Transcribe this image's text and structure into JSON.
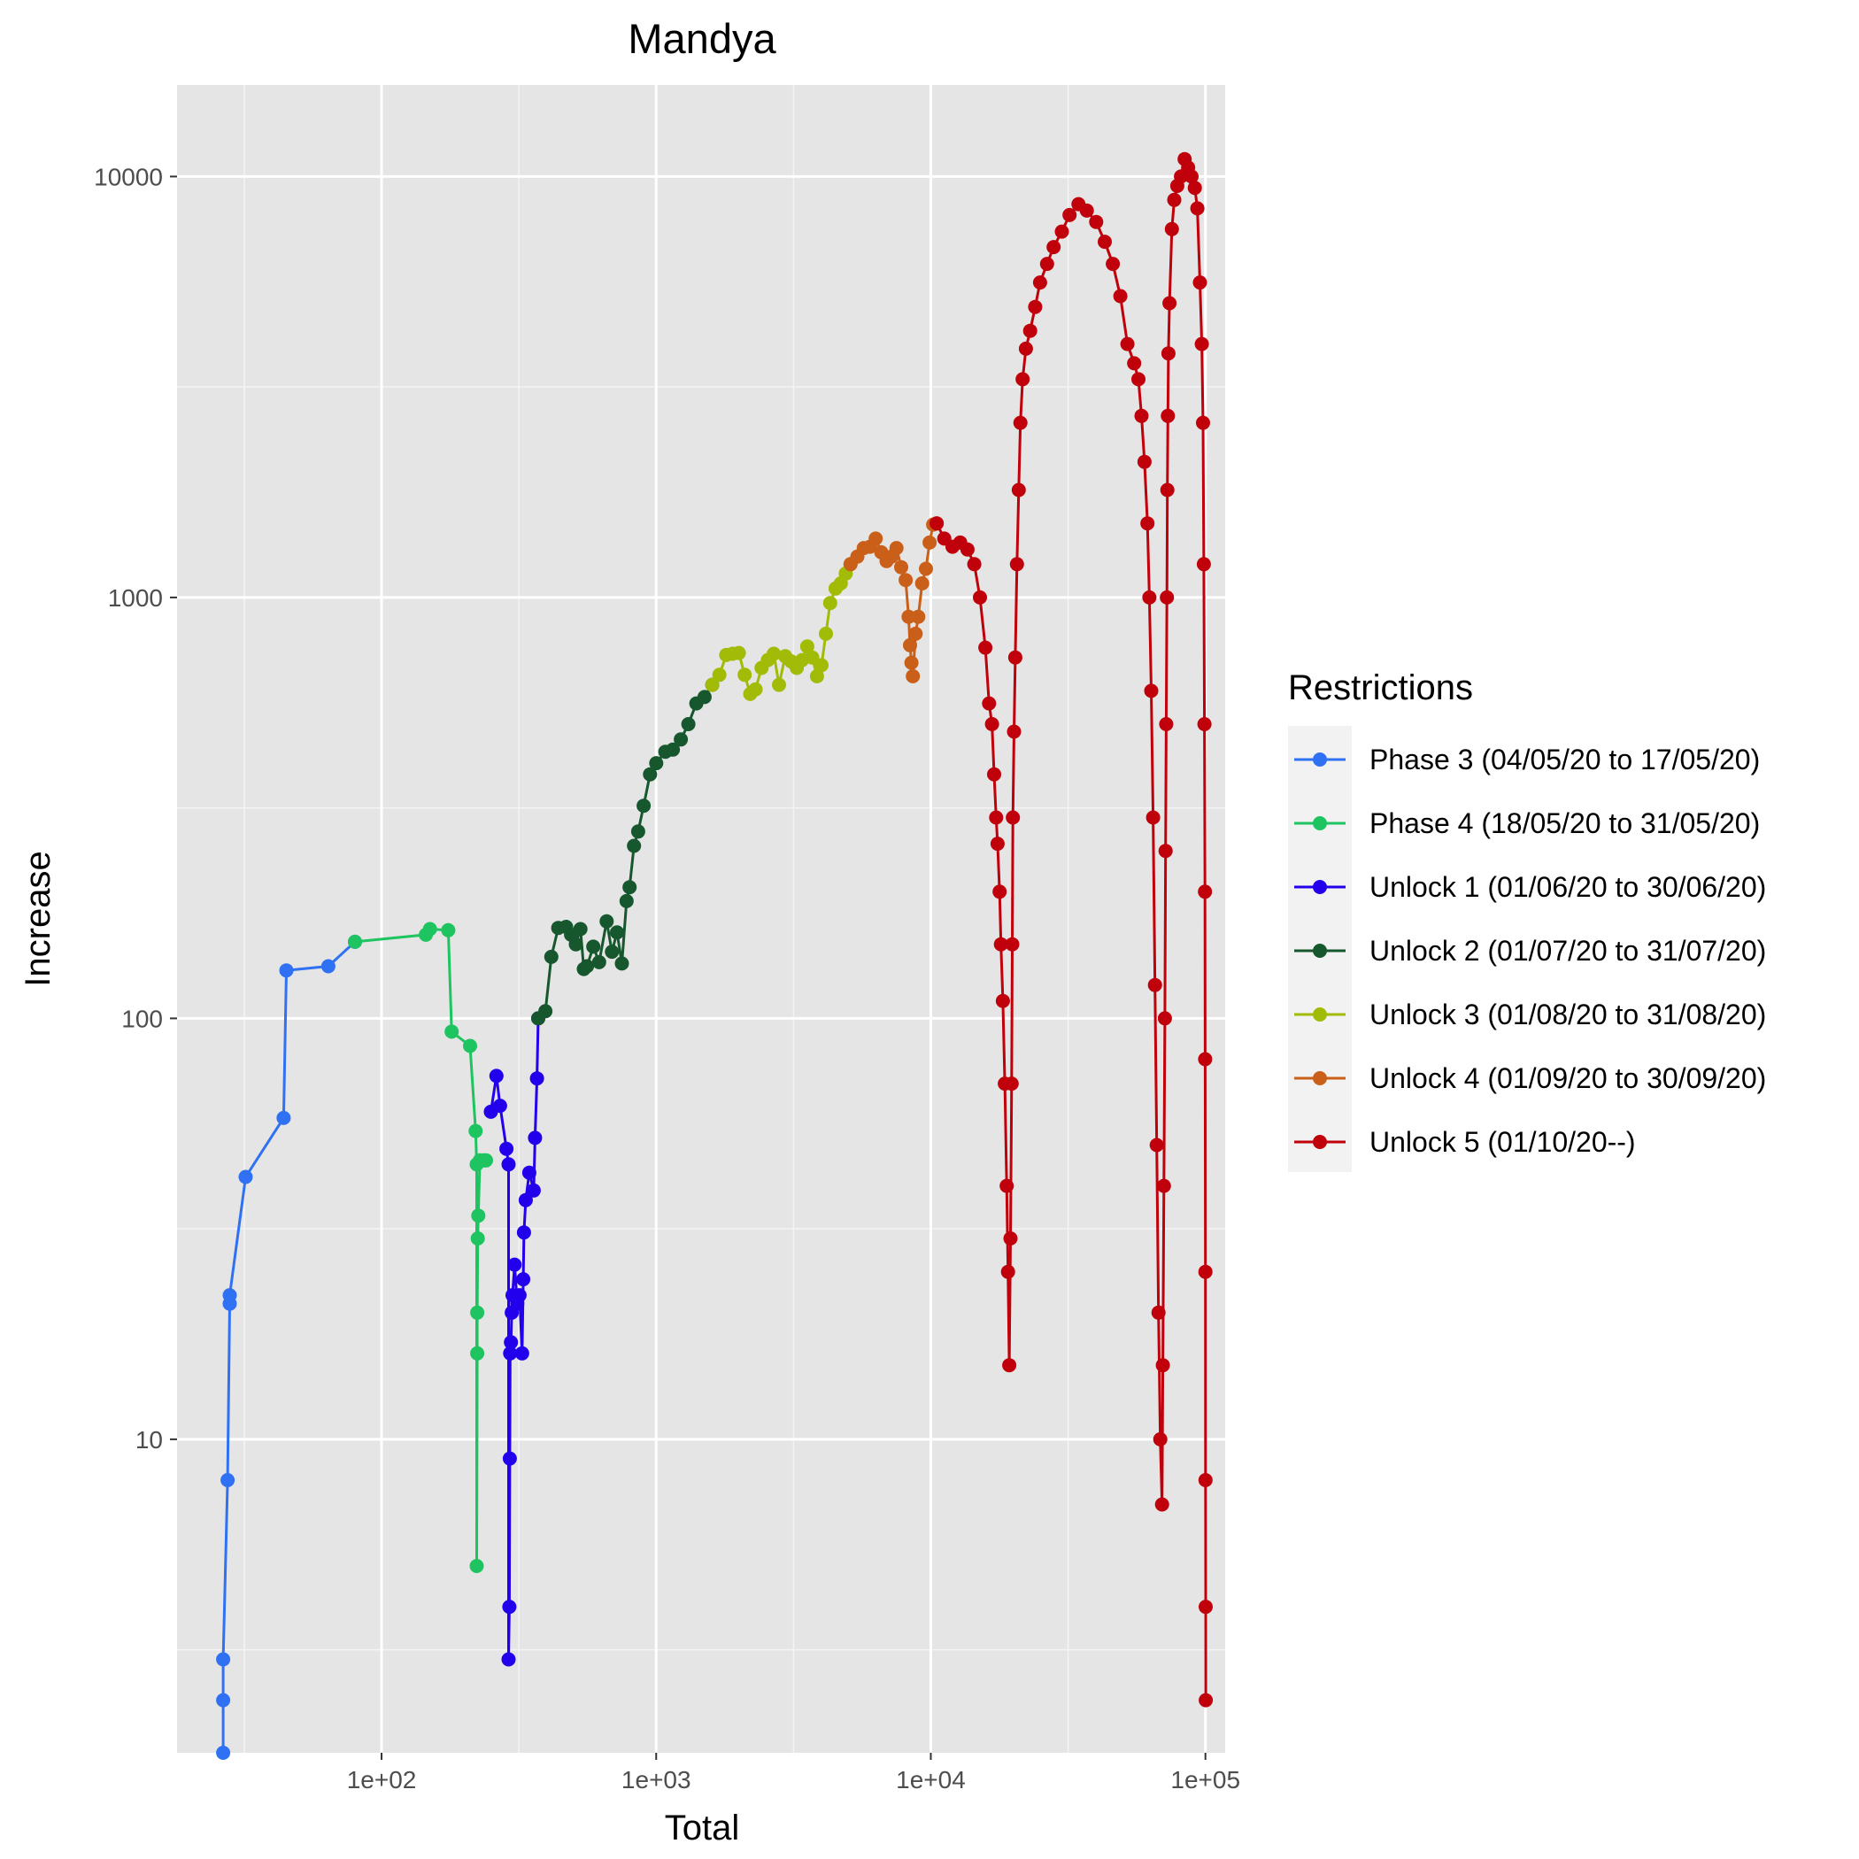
{
  "chart_data": {
    "type": "line",
    "title": "Mandya",
    "xlabel": "Total",
    "ylabel": "Increase",
    "x_scale": "log",
    "y_scale": "log",
    "xlim": [
      18,
      118000
    ],
    "ylim": [
      1.8,
      16500
    ],
    "x_ticks": [
      100,
      1000,
      10000,
      100000
    ],
    "x_tick_labels": [
      "1e+02",
      "1e+03",
      "1e+04",
      "1e+05"
    ],
    "y_ticks": [
      10,
      100,
      1000,
      10000
    ],
    "y_tick_labels": [
      "10",
      "100",
      "1000",
      "10000"
    ],
    "grid": true,
    "legend": {
      "title": "Restrictions",
      "position": "right"
    },
    "background": "#e5e5e5",
    "series": [
      {
        "name": "Phase 3 (04/05/20 to 17/05/20)",
        "color": "#2f71f2",
        "x": [
          26.5,
          26.5,
          26.5,
          27.5,
          28,
          28,
          32,
          44,
          45,
          64,
          80
        ],
        "y": [
          1.8,
          2.4,
          3,
          8,
          21,
          22,
          42,
          58,
          130,
          133,
          152
        ]
      },
      {
        "name": "Phase 4 (18/05/20 to 31/05/20)",
        "color": "#1ec460",
        "x": [
          80,
          145,
          150,
          175,
          180,
          210,
          220,
          222,
          222,
          223,
          223,
          224,
          225,
          228,
          235,
          240
        ],
        "y": [
          152,
          158,
          163,
          162,
          93,
          86,
          54,
          45,
          5,
          16,
          20,
          30,
          34,
          46,
          46,
          46
        ]
      },
      {
        "name": "Unlock 1 (01/06/20 to 30/06/20)",
        "color": "#2200ec",
        "x": [
          250,
          262,
          270,
          285,
          290,
          290,
          292,
          293,
          294,
          296,
          298,
          300,
          305,
          312,
          318,
          325,
          328,
          330,
          335,
          345,
          358,
          362,
          368,
          372
        ],
        "y": [
          60,
          73,
          62,
          49,
          45,
          3,
          4,
          9,
          16,
          17,
          20,
          22,
          26,
          21,
          22,
          16,
          24,
          31,
          37,
          43,
          39,
          52,
          72,
          100
        ]
      },
      {
        "name": "Unlock 2 (01/07/20 to 31/07/20)",
        "color": "#16572e",
        "x": [
          372,
          395,
          415,
          440,
          470,
          490,
          510,
          530,
          545,
          560,
          590,
          620,
          660,
          690,
          720,
          750,
          780,
          800,
          830,
          860,
          900,
          950,
          1000,
          1080,
          1150,
          1230,
          1310,
          1400,
          1500,
          1600
        ],
        "y": [
          100,
          104,
          140,
          164,
          165,
          158,
          150,
          163,
          131,
          133,
          148,
          136,
          170,
          144,
          160,
          135,
          190,
          205,
          257,
          278,
          320,
          380,
          404,
          430,
          435,
          460,
          500,
          560,
          580,
          620
        ]
      },
      {
        "name": "Unlock 3 (01/08/20 to 31/08/20)",
        "color": "#a2bb07",
        "x": [
          1600,
          1700,
          1800,
          1900,
          2000,
          2100,
          2200,
          2300,
          2420,
          2550,
          2680,
          2800,
          2950,
          3100,
          3250,
          3400,
          3550,
          3700,
          3850,
          4000,
          4150,
          4300,
          4500,
          4700,
          4900,
          5100
        ],
        "y": [
          620,
          655,
          730,
          735,
          738,
          655,
          590,
          605,
          680,
          710,
          735,
          620,
          725,
          705,
          680,
          710,
          765,
          720,
          650,
          690,
          820,
          970,
          1050,
          1080,
          1140,
          1200
        ]
      },
      {
        "name": "Unlock 4 (01/09/20 to 30/09/20)",
        "color": "#c95f18",
        "x": [
          5100,
          5400,
          5700,
          6000,
          6300,
          6600,
          6900,
          7200,
          7500,
          7800,
          8100,
          8300,
          8400,
          8500,
          8600,
          8800,
          9000,
          9300,
          9600,
          9900,
          10200,
          10500
        ],
        "y": [
          1200,
          1250,
          1310,
          1320,
          1380,
          1280,
          1220,
          1250,
          1310,
          1180,
          1100,
          900,
          770,
          700,
          650,
          820,
          900,
          1080,
          1170,
          1350,
          1490,
          1500
        ]
      },
      {
        "name": "Unlock 5 (01/10/20--)",
        "color": "#c0000a",
        "x": [
          10500,
          11200,
          12000,
          12800,
          13600,
          14400,
          15100,
          15800,
          16300,
          16700,
          17000,
          17300,
          17500,
          17800,
          18000,
          18300,
          18600,
          18900,
          19100,
          19300,
          19500,
          19700,
          19800,
          19900,
          20100,
          20300,
          20600,
          20900,
          21200,
          21600,
          22200,
          23000,
          24000,
          25000,
          26500,
          28000,
          30000,
          32000,
          34500,
          37000,
          40000,
          43000,
          46000,
          49000,
          52000,
          55000,
          57000,
          58500,
          60000,
          61500,
          62500,
          63500,
          64500,
          65500,
          66500,
          67500,
          68500,
          69500,
          70000,
          70600,
          71200,
          71600,
          72000,
          72400,
          72700,
          73000,
          73300,
          74000,
          75500,
          77000,
          79000,
          81500,
          84000,
          86500,
          89000,
          91500,
          93500,
          95500,
          97000,
          98000,
          98700,
          99200,
          99600,
          99800,
          100000,
          100100,
          100200,
          100300
        ],
        "y": [
          1500,
          1380,
          1320,
          1350,
          1300,
          1200,
          1000,
          760,
          560,
          500,
          380,
          300,
          260,
          200,
          150,
          110,
          70,
          40,
          25,
          15,
          30,
          70,
          150,
          300,
          480,
          720,
          1200,
          1800,
          2600,
          3300,
          3900,
          4300,
          4900,
          5600,
          6200,
          6800,
          7400,
          8100,
          8600,
          8300,
          7800,
          7000,
          6200,
          5200,
          4000,
          3600,
          3300,
          2700,
          2100,
          1500,
          1000,
          600,
          300,
          120,
          50,
          20,
          10,
          7,
          15,
          40,
          100,
          250,
          500,
          1000,
          1800,
          2700,
          3800,
          5000,
          7500,
          8800,
          9500,
          10000,
          11000,
          10500,
          10000,
          9400,
          8400,
          5600,
          4000,
          2600,
          1200,
          500,
          200,
          80,
          25,
          8,
          4,
          2.4
        ]
      }
    ]
  }
}
